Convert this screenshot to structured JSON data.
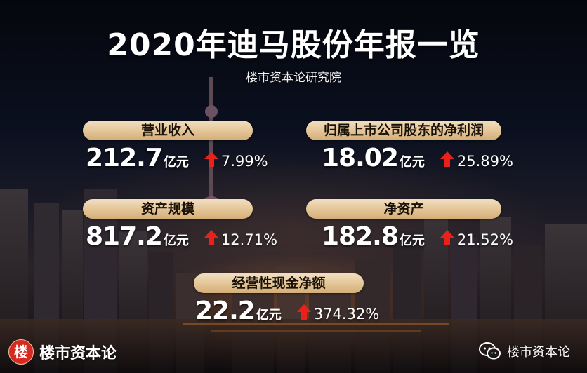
{
  "header": {
    "title": "2020年迪马股份年报一览",
    "subtitle": "楼市资本论研究院"
  },
  "metrics": [
    {
      "label": "营业收入",
      "value": "212.7",
      "unit": "亿元",
      "change": "7.99%"
    },
    {
      "label": "归属上市公司股东的净利润",
      "value": "18.02",
      "unit": "亿元",
      "change": "25.89%"
    },
    {
      "label": "资产规模",
      "value": "817.2",
      "unit": "亿元",
      "change": "12.71%"
    },
    {
      "label": "净资产",
      "value": "182.8",
      "unit": "亿元",
      "change": "21.52%"
    },
    {
      "label": "经营性现金净额",
      "value": "22.2",
      "unit": "亿元",
      "change": "374.32%"
    }
  ],
  "branding": {
    "logo_char": "楼",
    "logo_text": "楼市资本论",
    "wechat_account": "楼市资本论"
  },
  "icons": {
    "increase": "arrow-up-icon",
    "wechat": "wechat-icon",
    "brand": "brand-logo-icon"
  },
  "colors": {
    "pill_gradient_top": "#f1dfc1",
    "pill_gradient_bottom": "#d4ae78",
    "increase_arrow": "#e8221b",
    "brand_red": "#d62a20",
    "text": "#ffffff"
  }
}
